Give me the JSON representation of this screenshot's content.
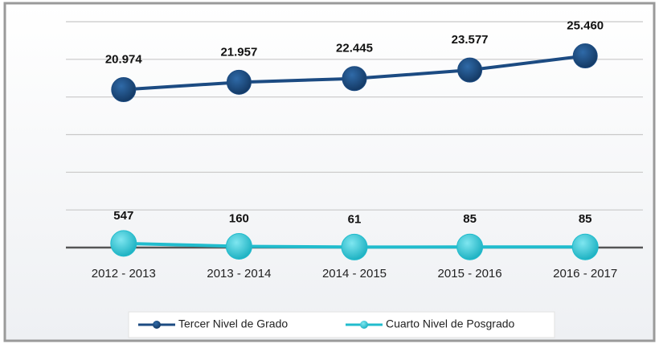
{
  "chart_data": {
    "type": "line",
    "categories": [
      "2012 - 2013",
      "2013 - 2014",
      "2014 - 2015",
      "2015 - 2016",
      "2016 - 2017"
    ],
    "series": [
      {
        "name": "Tercer Nivel de Grado",
        "color": "#1c4b82",
        "values": [
          20974,
          21957,
          22445,
          23577,
          25460
        ],
        "value_labels": [
          "20.974",
          "21.957",
          "22.445",
          "23.577",
          "25.460"
        ]
      },
      {
        "name": "Cuarto Nivel de Posgrado",
        "color": "#21bccd",
        "values": [
          547,
          160,
          61,
          85,
          85
        ],
        "value_labels": [
          "547",
          "160",
          "61",
          "85",
          "85"
        ]
      }
    ],
    "ylim": [
      0,
      30000
    ],
    "yticks": [
      0,
      5000,
      10000,
      15000,
      20000,
      25000,
      30000
    ],
    "grid": true,
    "legend": "bottom"
  }
}
